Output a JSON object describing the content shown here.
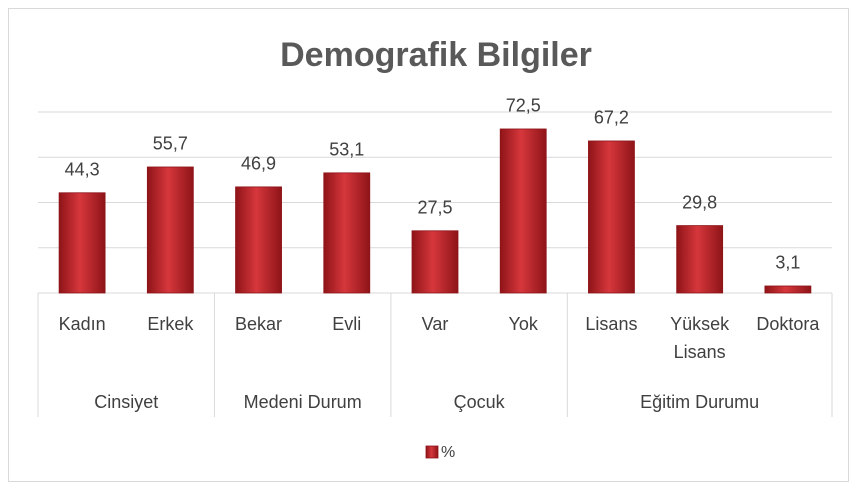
{
  "chart_data": {
    "type": "bar",
    "title": "Demografik Bilgiler",
    "categories": [
      "Kadın",
      "Erkek",
      "Bekar",
      "Evli",
      "Var",
      "Yok",
      "Lisans",
      "Yüksek Lisans",
      "Doktora"
    ],
    "groups": [
      {
        "name": "Cinsiyet",
        "size": 2
      },
      {
        "name": "Medeni Durum",
        "size": 2
      },
      {
        "name": "Çocuk",
        "size": 2
      },
      {
        "name": "Eğitim Durumu",
        "size": 3
      }
    ],
    "series": [
      {
        "name": "%",
        "color": "#c0282d",
        "values": [
          44.3,
          55.7,
          46.9,
          53.1,
          27.5,
          72.5,
          67.2,
          29.8,
          3.1
        ],
        "value_labels": [
          "44,3",
          "55,7",
          "46,9",
          "53,1",
          "27,5",
          "72,5",
          "67,2",
          "29,8",
          "3,1"
        ]
      }
    ],
    "ylim": [
      0,
      80
    ],
    "yticks": [
      0,
      20,
      40,
      60,
      80
    ],
    "grid": true,
    "legend": "bottom"
  }
}
